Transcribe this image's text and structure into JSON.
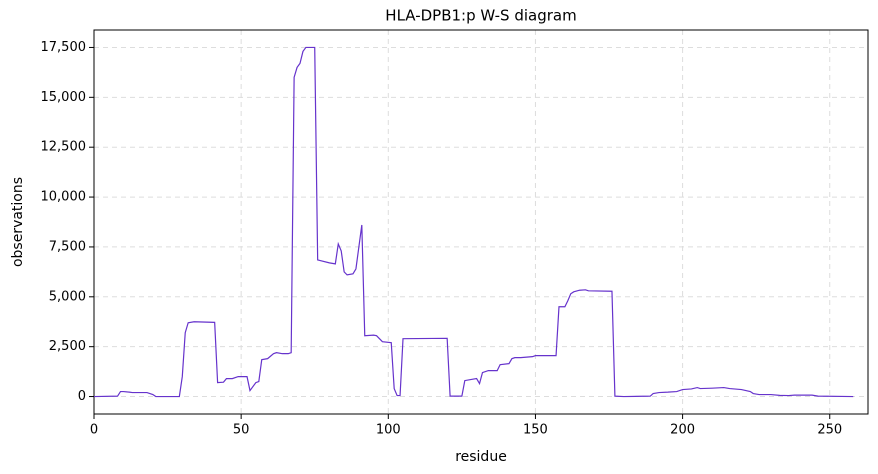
{
  "chart_data": {
    "type": "line",
    "title": "HLA-DPB1:p W-S diagram",
    "xlabel": "residue",
    "ylabel": "observations",
    "x": [
      0,
      8,
      9,
      10,
      12,
      13,
      18,
      20,
      21,
      29,
      30,
      31,
      32,
      34,
      41,
      42,
      44,
      45,
      47,
      49,
      52,
      53,
      55,
      56,
      57,
      59,
      61,
      62,
      64,
      66,
      67,
      68,
      69,
      70,
      71,
      72,
      74,
      75,
      76,
      80,
      82,
      83,
      84,
      85,
      86,
      88,
      89,
      90,
      91,
      92,
      95,
      96,
      98,
      101,
      102,
      103,
      104,
      105,
      120,
      121,
      125,
      126,
      128,
      130,
      131,
      132,
      134,
      137,
      138,
      141,
      142,
      143,
      145,
      149,
      150,
      153,
      157,
      158,
      160,
      161,
      162,
      163,
      165,
      167,
      168,
      176,
      177,
      180,
      189,
      190,
      192,
      195,
      198,
      200,
      203,
      205,
      206,
      210,
      214,
      216,
      220,
      223,
      224,
      226,
      230,
      233,
      236,
      238,
      244,
      246,
      258
    ],
    "series": [
      {
        "name": "observations",
        "color": "#6633cc",
        "values": [
          0,
          20,
          250,
          250,
          220,
          200,
          200,
          100,
          0,
          0,
          1000,
          3200,
          3700,
          3750,
          3720,
          700,
          720,
          900,
          900,
          1000,
          1000,
          300,
          700,
          750,
          1850,
          1900,
          2150,
          2200,
          2150,
          2150,
          2200,
          16000,
          16500,
          16700,
          17300,
          17500,
          17500,
          17500,
          6850,
          6700,
          6650,
          7650,
          7300,
          6250,
          6100,
          6150,
          6400,
          7500,
          8600,
          3050,
          3080,
          3050,
          2750,
          2700,
          400,
          50,
          50,
          2900,
          2920,
          20,
          20,
          800,
          850,
          900,
          650,
          1200,
          1300,
          1300,
          1600,
          1650,
          1900,
          1950,
          1950,
          2000,
          2050,
          2050,
          2050,
          4500,
          4500,
          4800,
          5150,
          5250,
          5330,
          5350,
          5300,
          5280,
          20,
          0,
          20,
          150,
          200,
          220,
          250,
          350,
          380,
          450,
          400,
          420,
          450,
          400,
          350,
          250,
          150,
          100,
          100,
          60,
          50,
          70,
          70,
          20,
          0
        ]
      }
    ],
    "xlim": [
      0,
      263
    ],
    "ylim": [
      -875,
      18375
    ],
    "xticks": [
      0,
      50,
      100,
      150,
      200,
      250
    ],
    "yticks": [
      0,
      {
        "value": 2500,
        "label": "2,500"
      },
      {
        "value": 5000,
        "label": "5,000"
      },
      {
        "value": 7500,
        "label": "7,500"
      },
      {
        "value": 10000,
        "label": "10,000"
      },
      {
        "value": 12500,
        "label": "12,500"
      },
      {
        "value": 15000,
        "label": "15,000"
      },
      {
        "value": 17500,
        "label": "17,500"
      }
    ],
    "grid": true
  }
}
